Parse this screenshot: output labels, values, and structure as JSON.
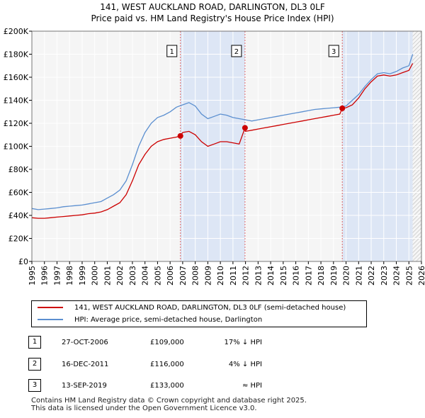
{
  "title_line1": "141, WEST AUCKLAND ROAD, DARLINGTON, DL3 0LF",
  "title_line2": "Price paid vs. HM Land Registry's House Price Index (HPI)",
  "colors": {
    "property": "#cc0000",
    "hpi": "#5b8fd0",
    "shade": "#dde6f5",
    "vline": "#dd6666"
  },
  "chart_data": {
    "type": "line",
    "ylim": [
      0,
      200000
    ],
    "xlim": [
      1995,
      2026
    ],
    "y_ticks": [
      0,
      20000,
      40000,
      60000,
      80000,
      100000,
      120000,
      140000,
      160000,
      180000,
      200000
    ],
    "y_tick_labels": [
      "£0",
      "£20K",
      "£40K",
      "£60K",
      "£80K",
      "£100K",
      "£120K",
      "£140K",
      "£160K",
      "£180K",
      "£200K"
    ],
    "x_ticks": [
      1995,
      1996,
      1997,
      1998,
      1999,
      2000,
      2001,
      2002,
      2003,
      2004,
      2005,
      2006,
      2007,
      2008,
      2009,
      2010,
      2011,
      2012,
      2013,
      2014,
      2015,
      2016,
      2017,
      2018,
      2019,
      2020,
      2021,
      2022,
      2023,
      2024,
      2025,
      2026
    ],
    "x_tick_labels": [
      "1995",
      "1996",
      "1997",
      "1998",
      "1999",
      "2000",
      "2001",
      "2002",
      "2003",
      "2004",
      "2005",
      "2006",
      "2007",
      "2008",
      "2009",
      "2010",
      "2011",
      "2012",
      "2013",
      "2014",
      "2015",
      "2016",
      "2017",
      "2018",
      "2019",
      "2020",
      "2021",
      "2022",
      "2023",
      "2024",
      "2025",
      "2026"
    ],
    "grid": true,
    "shaded_ranges": [
      [
        2006.82,
        2011.96
      ],
      [
        2019.7,
        2025.3
      ]
    ],
    "hatched_range": [
      2025.3,
      2026
    ],
    "sale_markers": [
      {
        "label": "1",
        "x": 2006.82,
        "y": 109000
      },
      {
        "label": "2",
        "x": 2011.96,
        "y": 116000
      },
      {
        "label": "3",
        "x": 2019.7,
        "y": 133000
      }
    ],
    "series": [
      {
        "name": "hpi",
        "x": [
          1995,
          1995.5,
          1996,
          1996.5,
          1997,
          1997.5,
          1998,
          1998.5,
          1999,
          1999.5,
          2000,
          2000.5,
          2001,
          2001.5,
          2002,
          2002.5,
          2003,
          2003.5,
          2004,
          2004.5,
          2005,
          2005.5,
          2006,
          2006.5,
          2007,
          2007.5,
          2008,
          2008.5,
          2009,
          2009.5,
          2010,
          2010.5,
          2011,
          2011.5,
          2012,
          2012.5,
          2013,
          2013.5,
          2014,
          2014.5,
          2015,
          2015.5,
          2016,
          2016.5,
          2017,
          2017.5,
          2018,
          2018.5,
          2019,
          2019.5,
          2020,
          2020.5,
          2021,
          2021.5,
          2022,
          2022.5,
          2023,
          2023.5,
          2024,
          2024.5,
          2025,
          2025.3
        ],
        "values": [
          46000,
          45000,
          45500,
          46000,
          46500,
          47500,
          48000,
          48500,
          49000,
          50000,
          51000,
          52000,
          55000,
          58000,
          62000,
          70000,
          84000,
          100000,
          112000,
          120000,
          125000,
          127000,
          130000,
          134000,
          136000,
          138000,
          135000,
          128000,
          124000,
          126000,
          128000,
          127000,
          125000,
          124000,
          123000,
          122000,
          123000,
          124000,
          125000,
          126000,
          127000,
          128000,
          129000,
          130000,
          131000,
          132000,
          132500,
          133000,
          133500,
          134000,
          135000,
          140000,
          145000,
          152000,
          158000,
          163000,
          164000,
          163000,
          165000,
          168000,
          170000,
          180000
        ]
      },
      {
        "name": "property",
        "x": [
          1995,
          1995.5,
          1996,
          1996.5,
          1997,
          1997.5,
          1998,
          1998.5,
          1999,
          1999.5,
          2000,
          2000.5,
          2001,
          2001.5,
          2002,
          2002.5,
          2003,
          2003.5,
          2004,
          2004.5,
          2005,
          2005.5,
          2006,
          2006.5,
          2006.82,
          2007,
          2007.5,
          2008,
          2008.5,
          2009,
          2009.5,
          2010,
          2010.5,
          2011,
          2011.5,
          2011.96,
          2012,
          2012.5,
          2013,
          2013.5,
          2014,
          2014.5,
          2015,
          2015.5,
          2016,
          2016.5,
          2017,
          2017.5,
          2018,
          2018.5,
          2019,
          2019.5,
          2019.7,
          2020,
          2020.5,
          2021,
          2021.5,
          2022,
          2022.5,
          2023,
          2023.5,
          2024,
          2024.5,
          2025,
          2025.3
        ],
        "values": [
          38000,
          37500,
          37500,
          38000,
          38500,
          39000,
          39500,
          40000,
          40500,
          41500,
          42000,
          43000,
          45000,
          48000,
          51000,
          58000,
          70000,
          84000,
          93000,
          100000,
          104000,
          106000,
          107000,
          108000,
          109000,
          112000,
          113000,
          110000,
          104000,
          100000,
          102000,
          104000,
          104000,
          103000,
          102000,
          116000,
          113000,
          114000,
          115000,
          116000,
          117000,
          118000,
          119000,
          120000,
          121000,
          122000,
          123000,
          124000,
          125000,
          126000,
          127000,
          128000,
          133000,
          133500,
          136000,
          142000,
          150000,
          156000,
          161000,
          162000,
          161000,
          162000,
          164000,
          166000,
          172000
        ]
      }
    ]
  },
  "legend": {
    "property_label": "141, WEST AUCKLAND ROAD, DARLINGTON, DL3 0LF (semi-detached house)",
    "hpi_label": "HPI: Average price, semi-detached house, Darlington"
  },
  "transactions": [
    {
      "num": "1",
      "date": "27-OCT-2006",
      "price": "£109,000",
      "hpi": "17% ↓ HPI"
    },
    {
      "num": "2",
      "date": "16-DEC-2011",
      "price": "£116,000",
      "hpi": "4% ↓ HPI"
    },
    {
      "num": "3",
      "date": "13-SEP-2019",
      "price": "£133,000",
      "hpi": "≈ HPI"
    }
  ],
  "footer_line1": "Contains HM Land Registry data © Crown copyright and database right 2025.",
  "footer_line2": "This data is licensed under the Open Government Licence v3.0."
}
